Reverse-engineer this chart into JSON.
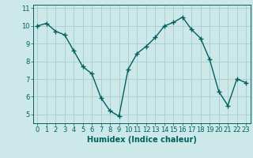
{
  "x": [
    0,
    1,
    2,
    3,
    4,
    5,
    6,
    7,
    8,
    9,
    10,
    11,
    12,
    13,
    14,
    15,
    16,
    17,
    18,
    19,
    20,
    21,
    22,
    23
  ],
  "y": [
    10.0,
    10.15,
    9.7,
    9.5,
    8.6,
    7.7,
    7.3,
    5.95,
    5.2,
    4.9,
    7.55,
    8.45,
    8.85,
    9.35,
    10.0,
    10.2,
    10.5,
    9.8,
    9.3,
    8.1,
    6.3,
    5.5,
    7.0,
    6.8
  ],
  "line_color": "#006060",
  "marker": "+",
  "marker_size": 4,
  "bg_color": "#cce8e8",
  "grid_color": "#aacccc",
  "xlabel": "Humidex (Indice chaleur)",
  "ylim": [
    4.5,
    11.2
  ],
  "xlim": [
    -0.5,
    23.5
  ],
  "yticks": [
    5,
    6,
    7,
    8,
    9,
    10,
    11
  ],
  "xticks": [
    0,
    1,
    2,
    3,
    4,
    5,
    6,
    7,
    8,
    9,
    10,
    11,
    12,
    13,
    14,
    15,
    16,
    17,
    18,
    19,
    20,
    21,
    22,
    23
  ],
  "xlabel_fontsize": 7,
  "tick_fontsize": 6,
  "line_width": 1.0
}
